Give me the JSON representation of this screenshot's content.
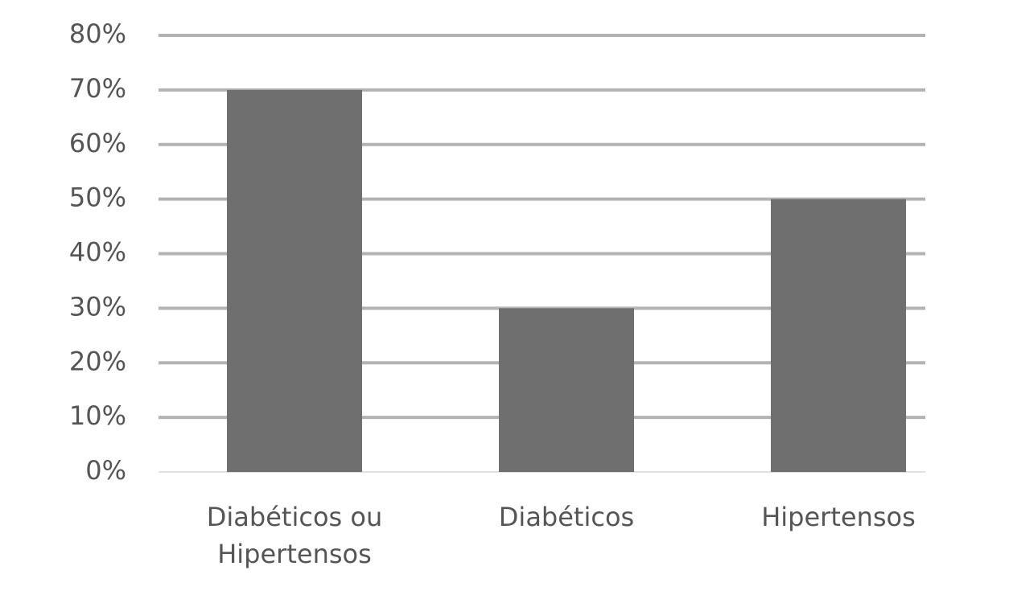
{
  "chart_data": {
    "type": "bar",
    "categories": [
      "Diabéticos ou Hipertensos",
      "Diabéticos",
      "Hipertensos"
    ],
    "values": [
      70,
      30,
      50
    ],
    "color": "#6f6f6f",
    "ylim": [
      0,
      80
    ],
    "yticks": [
      {
        "value": 0,
        "label": "0%"
      },
      {
        "value": 10,
        "label": "10%"
      },
      {
        "value": 20,
        "label": "20%"
      },
      {
        "value": 30,
        "label": "30%"
      },
      {
        "value": 40,
        "label": "40%"
      },
      {
        "value": 50,
        "label": "50%"
      },
      {
        "value": 60,
        "label": "60%"
      },
      {
        "value": 70,
        "label": "70%"
      },
      {
        "value": 80,
        "label": "80%"
      }
    ],
    "grid": true
  }
}
